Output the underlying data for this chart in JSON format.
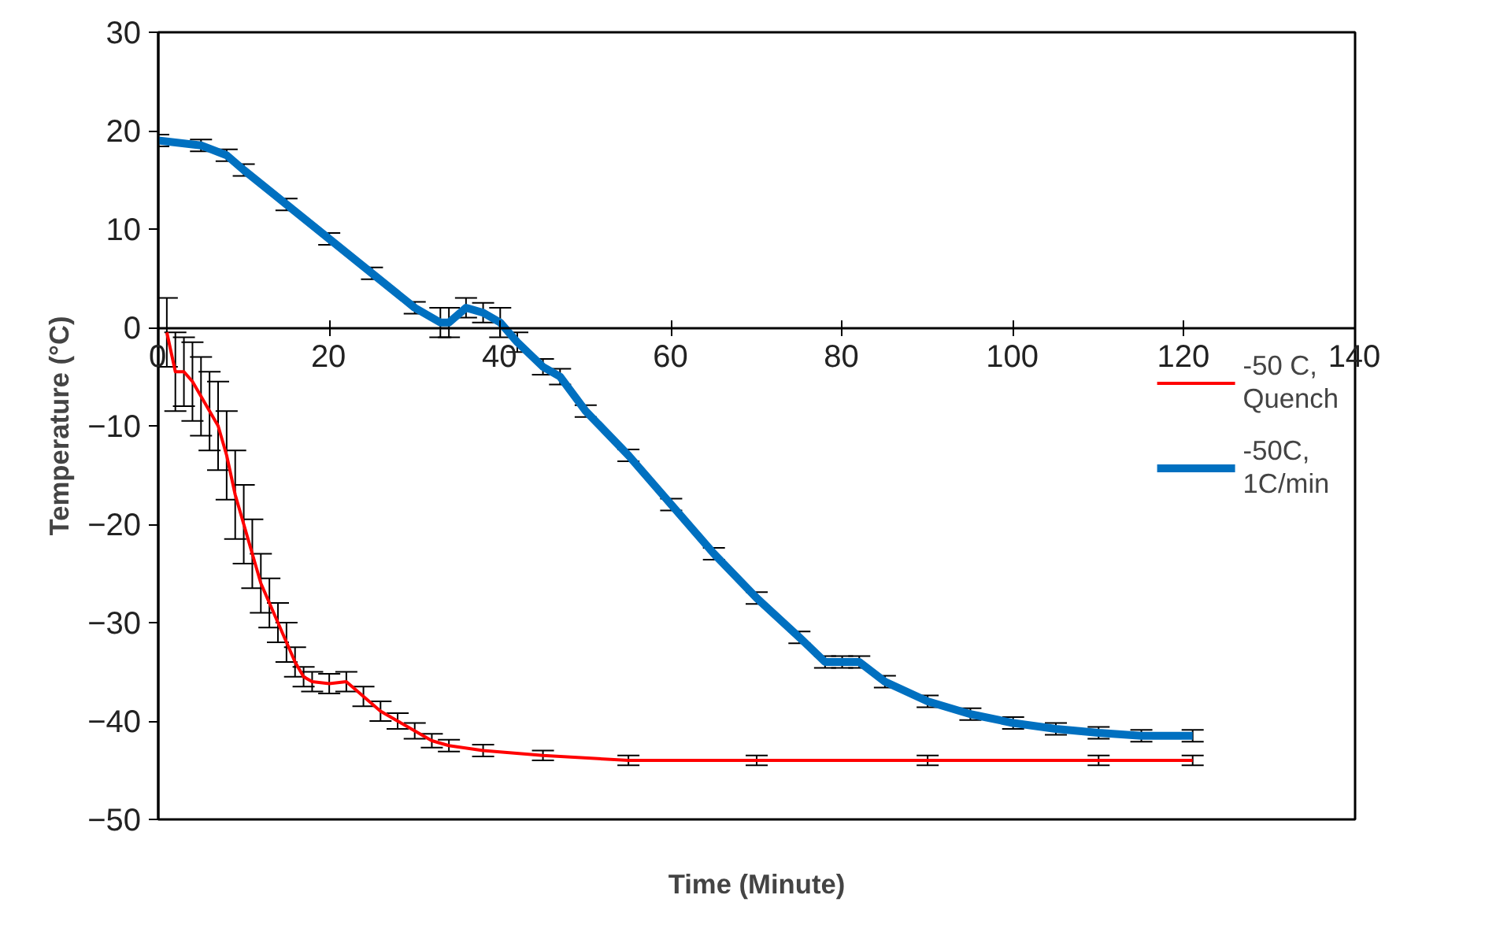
{
  "chart_data": {
    "type": "line",
    "xlabel": "Time (Minute)",
    "ylabel": "Temperature (°C)",
    "xlim": [
      0,
      140
    ],
    "xticks": [
      0,
      20,
      40,
      60,
      80,
      100,
      120,
      140
    ],
    "ylim": [
      -50,
      30
    ],
    "yticks": [
      -50,
      -40,
      -30,
      -20,
      -10,
      0,
      10,
      20,
      30
    ],
    "grid": false,
    "legend": "right",
    "marker": "none",
    "line_style": "solid",
    "series": [
      {
        "name": "-50 C,\nQuench",
        "color": "#ff0000",
        "x": [
          1,
          2,
          3,
          4,
          5,
          6,
          7,
          8,
          9,
          10,
          11,
          12,
          13,
          14,
          15,
          16,
          17,
          18,
          20,
          22,
          24,
          26,
          28,
          30,
          32,
          34,
          38,
          45,
          55,
          70,
          90,
          110,
          121
        ],
        "values": [
          -0.5,
          -4.5,
          -4.5,
          -5.5,
          -7,
          -8.5,
          -10,
          -13,
          -17,
          -20,
          -23,
          -26,
          -28,
          -30,
          -32,
          -34,
          -35.5,
          -36,
          -36.2,
          -36,
          -37.5,
          -39,
          -40,
          -41,
          -42,
          -42.5,
          -43,
          -43.5,
          -44,
          -44,
          -44,
          -44,
          -44
        ],
        "errors": [
          3.5,
          4,
          3.5,
          4,
          4,
          4,
          4.5,
          4.5,
          4.5,
          4,
          3.5,
          3,
          2.5,
          2,
          2,
          1.5,
          1,
          1,
          1,
          1,
          1,
          1,
          0.8,
          0.8,
          0.7,
          0.6,
          0.6,
          0.5,
          0.5,
          0.5,
          0.5,
          0.5,
          0.5
        ]
      },
      {
        "name": "-50C,\n1C/min",
        "color": "#0070c0",
        "x": [
          0,
          5,
          8,
          10,
          15,
          20,
          25,
          30,
          33,
          34,
          36,
          38,
          40,
          42,
          45,
          47,
          50,
          55,
          60,
          65,
          70,
          75,
          78,
          80,
          82,
          85,
          90,
          95,
          100,
          105,
          110,
          115,
          121
        ],
        "values": [
          19,
          18.5,
          17.5,
          16,
          12.5,
          9,
          5.5,
          2,
          0.5,
          0.5,
          2,
          1.5,
          0.5,
          -1.5,
          -4,
          -5,
          -8.5,
          -13,
          -18,
          -23,
          -27.5,
          -31.5,
          -34,
          -34,
          -34,
          -36,
          -38,
          -39.3,
          -40.2,
          -40.8,
          -41.2,
          -41.5,
          -41.5
        ],
        "errors": [
          0.6,
          0.6,
          0.6,
          0.6,
          0.6,
          0.6,
          0.6,
          0.6,
          1.5,
          1.5,
          1,
          1,
          1.5,
          1,
          0.8,
          0.8,
          0.6,
          0.6,
          0.6,
          0.6,
          0.6,
          0.6,
          0.6,
          0.6,
          0.6,
          0.6,
          0.6,
          0.6,
          0.6,
          0.6,
          0.6,
          0.6,
          0.6
        ]
      }
    ]
  }
}
